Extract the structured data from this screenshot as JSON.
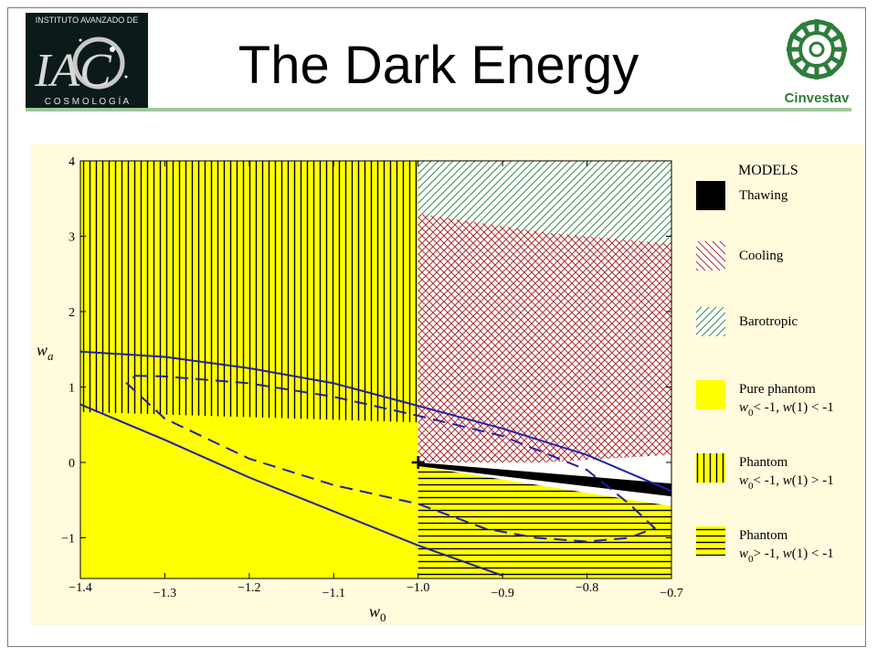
{
  "slide": {
    "title": "The Dark Energy",
    "left_logo": {
      "line1": "INSTITUTO AVANZADO DE",
      "monogram": "IAC",
      "line2": "C O S M O L O G Í A"
    },
    "right_logo": {
      "name": "Cinvestav",
      "icon": "cinvestav-gear-emblem",
      "color": "#2e7d3a"
    }
  },
  "chart_data": {
    "type": "region-plot",
    "xlabel_main": "w",
    "xlabel_sub": "0",
    "ylabel_main": "w",
    "ylabel_sub": "a",
    "xlim": [
      -1.4,
      -0.7
    ],
    "ylim": [
      -1.4,
      4.0
    ],
    "x_ticks": [
      {
        "v": -1.4,
        "label": "−1.4"
      },
      {
        "v": -1.3,
        "label": "−1.3"
      },
      {
        "v": -1.2,
        "label": "−1.2"
      },
      {
        "v": -1.1,
        "label": "−1.1"
      },
      {
        "v": -1.0,
        "label": "−1.0"
      },
      {
        "v": -0.9,
        "label": "−0.9"
      },
      {
        "v": -0.8,
        "label": "−0.8"
      },
      {
        "v": -0.7,
        "label": "−0.7"
      }
    ],
    "y_ticks": [
      {
        "v": 4,
        "label": "4"
      },
      {
        "v": 3,
        "label": "3"
      },
      {
        "v": 2,
        "label": "2"
      },
      {
        "v": 1,
        "label": "1"
      },
      {
        "v": 0,
        "label": "0"
      },
      {
        "v": -1,
        "label": "−1"
      }
    ],
    "colors": {
      "yellow": "#ffff00",
      "black": "#000000",
      "cooling": "#b03030",
      "barotropic": "#3a8a4a",
      "contour": "#2020a8",
      "panel": "#fffbdc"
    },
    "regions": {
      "phantom_cross_boundary": [
        [
          -1.4,
          0.67
        ],
        [
          -1.0,
          0.53
        ]
      ],
      "cooling_top": [
        [
          -1.0,
          3.3
        ],
        [
          -0.85,
          3.05
        ],
        [
          -0.7,
          2.9
        ]
      ],
      "cooling_bottom": [
        [
          -1.0,
          0.0
        ],
        [
          -0.85,
          0.0
        ],
        [
          -0.7,
          0.1
        ]
      ],
      "thawing_upper": [
        [
          -1.0,
          0.0
        ],
        [
          -0.7,
          -0.28
        ]
      ],
      "thawing_lower": [
        [
          -1.0,
          -0.05
        ],
        [
          -0.7,
          -0.45
        ]
      ],
      "phantom_below_boundary": [
        [
          -1.0,
          -0.05
        ],
        [
          -0.7,
          -0.58
        ]
      ],
      "cross_marker": {
        "x": -1.0,
        "y": 0.0
      }
    },
    "contours": {
      "solid_outer_top": [
        [
          -1.4,
          1.47
        ],
        [
          -1.3,
          1.4
        ],
        [
          -1.2,
          1.25
        ],
        [
          -1.1,
          1.05
        ],
        [
          -1.0,
          0.75
        ],
        [
          -0.9,
          0.45
        ],
        [
          -0.8,
          0.1
        ],
        [
          -0.7,
          -0.38
        ]
      ],
      "solid_outer_bottom": [
        [
          -1.4,
          0.77
        ],
        [
          -1.3,
          0.3
        ],
        [
          -1.2,
          -0.2
        ],
        [
          -1.1,
          -0.65
        ],
        [
          -1.0,
          -1.1
        ],
        [
          -0.95,
          -1.3
        ],
        [
          -0.9,
          -1.5
        ]
      ],
      "dashed_inner": [
        [
          -1.335,
          1.15
        ],
        [
          -1.3,
          1.14
        ],
        [
          -1.2,
          1.05
        ],
        [
          -1.1,
          0.87
        ],
        [
          -1.0,
          0.62
        ],
        [
          -0.9,
          0.35
        ],
        [
          -0.8,
          -0.1
        ],
        [
          -0.75,
          -0.55
        ],
        [
          -0.72,
          -0.87
        ],
        [
          -0.75,
          -1.0
        ],
        [
          -0.8,
          -1.05
        ],
        [
          -0.86,
          -1.0
        ],
        [
          -0.92,
          -0.88
        ],
        [
          -1.0,
          -0.55
        ],
        [
          -1.1,
          -0.3
        ],
        [
          -1.2,
          0.05
        ],
        [
          -1.3,
          0.58
        ],
        [
          -1.345,
          1.05
        ],
        [
          -1.335,
          1.15
        ]
      ]
    },
    "legend": {
      "title": "MODELS",
      "items": [
        {
          "key": "thawing",
          "pattern": "solid-black",
          "lines": [
            "Thawing"
          ]
        },
        {
          "key": "cooling",
          "pattern": "red-hatch",
          "lines": [
            "Cooling"
          ]
        },
        {
          "key": "barotropic",
          "pattern": "green-hatch",
          "lines": [
            "Barotropic"
          ]
        },
        {
          "key": "pure-phantom",
          "pattern": "solid-yellow",
          "lines": [
            "Pure phantom"
          ],
          "w0_main": "w",
          "w0_sub": "0",
          "cond1": "< -1,",
          "w1": "w",
          "w1_arg": "(1) < -1"
        },
        {
          "key": "phantom-vertical",
          "pattern": "yellow-vertical-stripes",
          "lines": [
            "Phantom"
          ],
          "w0_main": "w",
          "w0_sub": "0",
          "cond1": "< -1,",
          "w1": "w",
          "w1_arg": "(1) > -1"
        },
        {
          "key": "phantom-horizontal",
          "pattern": "yellow-horizontal-stripes",
          "lines": [
            "Phantom"
          ],
          "w0_main": "w",
          "w0_sub": "0",
          "cond1": "> -1,",
          "w1": "w",
          "w1_arg": "(1) < -1"
        }
      ]
    }
  }
}
